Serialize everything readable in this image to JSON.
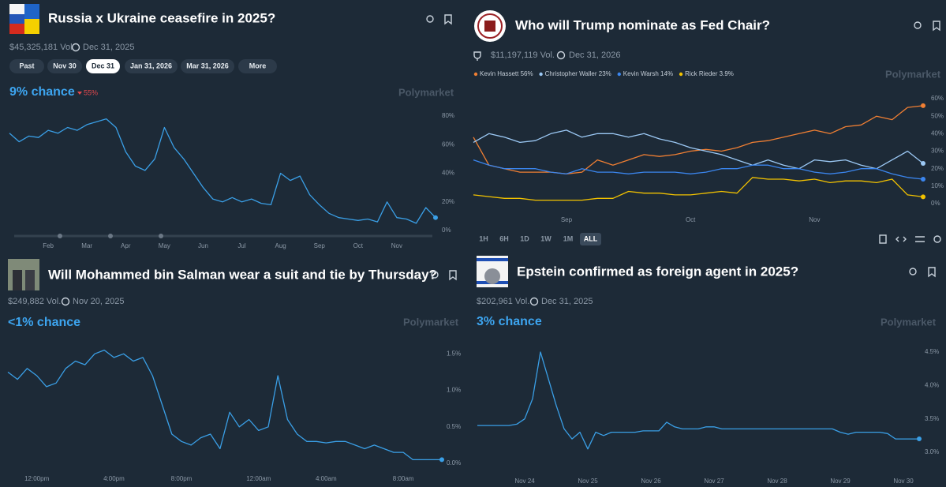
{
  "chart_data": [
    {
      "type": "line",
      "title": "Russia x Ukraine ceasefire in 2025?",
      "volume": "$45,325,181 Vol.",
      "end_date": "Dec 31, 2025",
      "buttons": [
        "Past",
        "Nov 30",
        "Dec 31",
        "Jan 31, 2026",
        "Mar 31, 2026",
        "More"
      ],
      "chance": "9% chance",
      "change": "55%",
      "watermark": "Polymarket",
      "categories": [
        null,
        null,
        null,
        null,
        "Feb",
        null,
        null,
        null,
        "Mar",
        null,
        null,
        null,
        "Apr",
        null,
        null,
        null,
        "May",
        null,
        null,
        null,
        "Jun",
        null,
        null,
        null,
        "Jul",
        null,
        null,
        null,
        "Aug",
        null,
        null,
        null,
        "Sep",
        null,
        null,
        null,
        "Oct",
        null,
        null,
        null,
        "Nov",
        null,
        null,
        null,
        null
      ],
      "values": [
        68,
        62,
        66,
        65,
        70,
        68,
        72,
        70,
        74,
        76,
        78,
        72,
        55,
        45,
        42,
        50,
        72,
        58,
        50,
        40,
        30,
        22,
        20,
        23,
        20,
        22,
        19,
        18,
        40,
        35,
        38,
        25,
        18,
        12,
        9,
        8,
        7,
        8,
        6,
        20,
        9,
        8,
        5,
        16,
        9
      ],
      "color": "#3a9fe6",
      "ylim": [
        0,
        80
      ],
      "yticks": [
        {
          "value": 0,
          "label": "0%"
        },
        {
          "value": 20,
          "label": "20%"
        },
        {
          "value": 40,
          "label": "40%"
        },
        {
          "value": 60,
          "label": "60%"
        },
        {
          "value": 80,
          "label": "80%"
        }
      ]
    },
    {
      "type": "line",
      "title": "Who will Trump nominate as Fed Chair?",
      "volume": "$11,197,119 Vol.",
      "end_date": "Dec 31, 2026",
      "buttons": [
        "1H",
        "6H",
        "1D",
        "1W",
        "1M",
        "ALL"
      ],
      "watermark": "Polymarket",
      "categories": [
        null,
        null,
        null,
        null,
        null,
        null,
        "Sep",
        null,
        null,
        null,
        null,
        null,
        null,
        null,
        "Oct",
        null,
        null,
        null,
        null,
        null,
        null,
        null,
        "Nov",
        null,
        null,
        null,
        null,
        null,
        null,
        null
      ],
      "series": [
        {
          "name": "Kevin Hassett 56%",
          "color": "#f07f33",
          "values": [
            38,
            22,
            20,
            18,
            18,
            18,
            17,
            18,
            25,
            22,
            25,
            28,
            27,
            28,
            30,
            31,
            30,
            32,
            35,
            36,
            38,
            40,
            42,
            40,
            44,
            45,
            50,
            48,
            55,
            56
          ]
        },
        {
          "name": "Christopher Waller 23%",
          "color": "#9cc9f5",
          "values": [
            35,
            40,
            38,
            35,
            36,
            40,
            42,
            38,
            40,
            40,
            38,
            40,
            37,
            35,
            32,
            30,
            28,
            25,
            22,
            25,
            22,
            20,
            25,
            24,
            25,
            22,
            20,
            25,
            30,
            23
          ]
        },
        {
          "name": "Kevin Warsh 14%",
          "color": "#3b86ef",
          "values": [
            25,
            22,
            20,
            20,
            20,
            18,
            17,
            20,
            18,
            18,
            17,
            18,
            18,
            18,
            17,
            18,
            20,
            20,
            22,
            22,
            20,
            20,
            18,
            17,
            18,
            20,
            20,
            17,
            15,
            14
          ]
        },
        {
          "name": "Rick Rieder 3.9%",
          "color": "#f2c200",
          "values": [
            5,
            4,
            3,
            3,
            2,
            2,
            2,
            2,
            3,
            3,
            7,
            6,
            6,
            5,
            5,
            6,
            7,
            6,
            15,
            14,
            14,
            13,
            14,
            12,
            13,
            13,
            12,
            14,
            5,
            3.9
          ]
        }
      ],
      "ylim": [
        0,
        60
      ],
      "yticks": [
        {
          "value": 0,
          "label": "0%"
        },
        {
          "value": 10,
          "label": "10%"
        },
        {
          "value": 20,
          "label": "20%"
        },
        {
          "value": 30,
          "label": "30%"
        },
        {
          "value": 40,
          "label": "40%"
        },
        {
          "value": 50,
          "label": "50%"
        },
        {
          "value": 60,
          "label": "60%"
        }
      ]
    },
    {
      "type": "line",
      "title": "Will Mohammed bin Salman wear a suit and tie by Thursday?",
      "volume": "$249,882 Vol.",
      "end_date": "Nov 20, 2025",
      "chance": "<1% chance",
      "watermark": "Polymarket",
      "categories": [
        null,
        null,
        null,
        "12:00pm",
        null,
        null,
        null,
        null,
        null,
        null,
        null,
        "4:00pm",
        null,
        null,
        null,
        null,
        null,
        null,
        "8:00pm",
        null,
        null,
        null,
        null,
        null,
        null,
        null,
        "12:00am",
        null,
        null,
        null,
        null,
        null,
        null,
        "4:00am",
        null,
        null,
        null,
        null,
        null,
        null,
        null,
        "8:00am",
        null,
        null,
        null,
        null
      ],
      "values": [
        1.25,
        1.15,
        1.3,
        1.2,
        1.05,
        1.1,
        1.3,
        1.4,
        1.35,
        1.5,
        1.55,
        1.45,
        1.5,
        1.4,
        1.45,
        1.2,
        0.8,
        0.4,
        0.3,
        0.25,
        0.35,
        0.4,
        0.2,
        0.7,
        0.5,
        0.6,
        0.45,
        0.5,
        1.2,
        0.6,
        0.4,
        0.3,
        0.3,
        0.28,
        0.3,
        0.3,
        0.25,
        0.2,
        0.25,
        0.2,
        0.15,
        0.15,
        0.05,
        0.05,
        0.05,
        0.05
      ],
      "color": "#3a9fe6",
      "ylim": [
        0,
        1.6
      ],
      "yticks": [
        {
          "value": 0,
          "label": "0.0%"
        },
        {
          "value": 0.5,
          "label": "0.5%"
        },
        {
          "value": 1,
          "label": "1.0%"
        },
        {
          "value": 1.5,
          "label": "1.5%"
        }
      ]
    },
    {
      "type": "line",
      "title": "Epstein confirmed as foreign agent in 2025?",
      "volume": "$202,961 Vol.",
      "end_date": "Dec 31, 2025",
      "chance": "3% chance",
      "watermark": "Polymarket",
      "categories": [
        null,
        null,
        null,
        null,
        null,
        null,
        "Nov 24",
        null,
        null,
        null,
        null,
        null,
        null,
        null,
        "Nov 25",
        null,
        null,
        null,
        null,
        null,
        null,
        null,
        "Nov 26",
        null,
        null,
        null,
        null,
        null,
        null,
        null,
        "Nov 27",
        null,
        null,
        null,
        null,
        null,
        null,
        null,
        "Nov 28",
        null,
        null,
        null,
        null,
        null,
        null,
        null,
        "Nov 29",
        null,
        null,
        null,
        null,
        null,
        null,
        null,
        "Nov 30",
        null,
        null
      ],
      "values": [
        3.4,
        3.4,
        3.4,
        3.4,
        3.4,
        3.42,
        3.5,
        3.8,
        4.5,
        4.1,
        3.7,
        3.35,
        3.2,
        3.3,
        3.05,
        3.3,
        3.25,
        3.3,
        3.3,
        3.3,
        3.3,
        3.32,
        3.32,
        3.32,
        3.45,
        3.38,
        3.35,
        3.35,
        3.35,
        3.38,
        3.38,
        3.35,
        3.35,
        3.35,
        3.35,
        3.35,
        3.35,
        3.35,
        3.35,
        3.35,
        3.35,
        3.35,
        3.35,
        3.35,
        3.35,
        3.35,
        3.3,
        3.27,
        3.3,
        3.3,
        3.3,
        3.3,
        3.28,
        3.2,
        3.2,
        3.2,
        3.2
      ],
      "color": "#3a9fe6",
      "ylim": [
        2.7,
        4.6
      ],
      "yticks": [
        {
          "value": 3,
          "label": "3.0%"
        },
        {
          "value": 3.5,
          "label": "3.5%"
        },
        {
          "value": 4,
          "label": "4.0%"
        },
        {
          "value": 4.5,
          "label": "4.5%"
        }
      ]
    }
  ]
}
